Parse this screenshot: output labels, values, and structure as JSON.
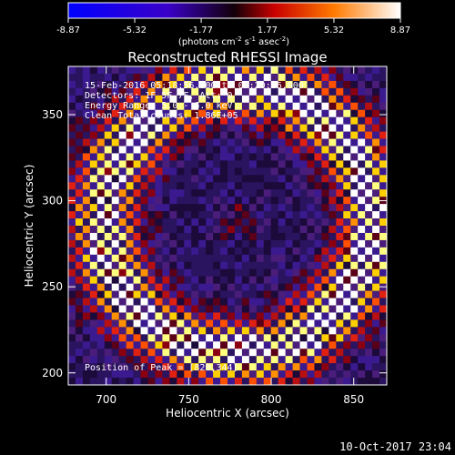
{
  "colorbar": {
    "ticks": [
      "-8.87",
      "-5.32",
      "-1.77",
      "1.77",
      "5.32",
      "8.87"
    ],
    "tick_values": [
      -8.87,
      -5.32,
      -1.77,
      1.77,
      5.32,
      8.87
    ],
    "range": [
      -8.87,
      8.87
    ],
    "unit_main": "(photons cm",
    "unit_exp1": "-2",
    "unit_mid": " s",
    "unit_exp2": "-1",
    "unit_mid2": " asec",
    "unit_exp3": "-2",
    "unit_end": ")"
  },
  "chart_data": {
    "type": "heatmap",
    "title": "Reconstructed RHESSI Image",
    "xlabel": "Heliocentric X (arcsec)",
    "ylabel": "Heliocentric Y (arcsec)",
    "xlim": [
      677,
      870
    ],
    "ylim": [
      193,
      378
    ],
    "x_ticks": [
      700,
      750,
      800,
      850
    ],
    "x_tick_labels": [
      "700",
      "750",
      "800",
      "850"
    ],
    "y_ticks": [
      200,
      250,
      300,
      350
    ],
    "y_tick_labels": [
      "200",
      "250",
      "300",
      "350"
    ],
    "peak_position": [
      820,
      344
    ],
    "pattern": "checkerboard with diagonal X-shaped bright band and dark center",
    "annotations": [
      "15-Feb-2016 05:18:56.000 to 05:20:56.000",
      "Detectors: 1F 5F 7F, Att: 0",
      "Energy Range: 5.0 - 6.0 keV",
      "Clean    Total counts: 1.86E+05"
    ],
    "peak_label": "Position of Peak = [820,344]"
  },
  "footer": {
    "timestamp": "10-Oct-2017 23:04"
  },
  "colors": {
    "background": "#000000",
    "text": "#ffffff"
  }
}
